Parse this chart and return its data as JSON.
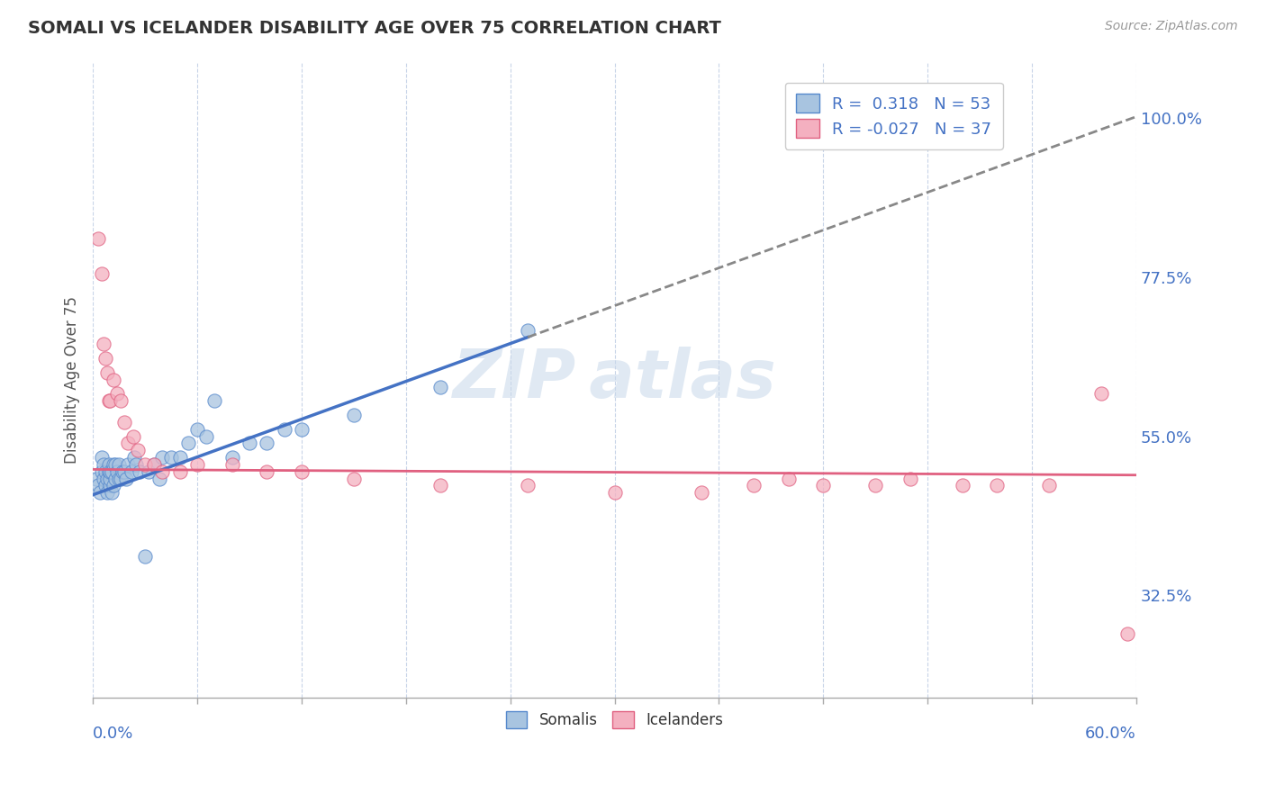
{
  "title": "SOMALI VS ICELANDER DISABILITY AGE OVER 75 CORRELATION CHART",
  "source": "Source: ZipAtlas.com",
  "ylabel": "Disability Age Over 75",
  "ylabel_right_ticks": [
    "32.5%",
    "55.0%",
    "77.5%",
    "100.0%"
  ],
  "ylabel_right_vals": [
    0.325,
    0.55,
    0.775,
    1.0
  ],
  "xmin": 0.0,
  "xmax": 0.6,
  "ymin": 0.18,
  "ymax": 1.08,
  "somali_R": 0.318,
  "somali_N": 53,
  "icelander_R": -0.027,
  "icelander_N": 37,
  "somali_color": "#a8c4e0",
  "somali_edge_color": "#5588cc",
  "somali_line_color": "#4472c4",
  "icelander_color": "#f4b0c0",
  "icelander_edge_color": "#e06080",
  "icelander_line_color": "#e06080",
  "background_color": "#ffffff",
  "grid_color": "#c8d4e8",
  "label_color": "#4472c4",
  "somali_x": [
    0.002,
    0.003,
    0.004,
    0.005,
    0.005,
    0.006,
    0.006,
    0.007,
    0.007,
    0.008,
    0.008,
    0.009,
    0.009,
    0.01,
    0.01,
    0.01,
    0.011,
    0.011,
    0.012,
    0.012,
    0.013,
    0.013,
    0.014,
    0.015,
    0.015,
    0.016,
    0.017,
    0.018,
    0.019,
    0.02,
    0.022,
    0.024,
    0.025,
    0.027,
    0.03,
    0.032,
    0.035,
    0.038,
    0.04,
    0.045,
    0.05,
    0.055,
    0.06,
    0.065,
    0.07,
    0.08,
    0.09,
    0.1,
    0.11,
    0.12,
    0.15,
    0.2,
    0.25
  ],
  "somali_y": [
    0.49,
    0.48,
    0.47,
    0.5,
    0.52,
    0.49,
    0.51,
    0.48,
    0.5,
    0.47,
    0.49,
    0.5,
    0.51,
    0.48,
    0.49,
    0.5,
    0.47,
    0.5,
    0.48,
    0.51,
    0.49,
    0.51,
    0.5,
    0.49,
    0.51,
    0.49,
    0.5,
    0.5,
    0.49,
    0.51,
    0.5,
    0.52,
    0.51,
    0.5,
    0.38,
    0.5,
    0.51,
    0.49,
    0.52,
    0.52,
    0.52,
    0.54,
    0.56,
    0.55,
    0.6,
    0.52,
    0.54,
    0.54,
    0.56,
    0.56,
    0.58,
    0.62,
    0.7
  ],
  "icelander_x": [
    0.003,
    0.005,
    0.006,
    0.007,
    0.008,
    0.009,
    0.01,
    0.012,
    0.014,
    0.016,
    0.018,
    0.02,
    0.023,
    0.026,
    0.03,
    0.035,
    0.04,
    0.05,
    0.06,
    0.08,
    0.1,
    0.12,
    0.15,
    0.2,
    0.25,
    0.3,
    0.35,
    0.38,
    0.4,
    0.42,
    0.45,
    0.47,
    0.5,
    0.52,
    0.55,
    0.58,
    0.595
  ],
  "icelander_y": [
    0.83,
    0.78,
    0.68,
    0.66,
    0.64,
    0.6,
    0.6,
    0.63,
    0.61,
    0.6,
    0.57,
    0.54,
    0.55,
    0.53,
    0.51,
    0.51,
    0.5,
    0.5,
    0.51,
    0.51,
    0.5,
    0.5,
    0.49,
    0.48,
    0.48,
    0.47,
    0.47,
    0.48,
    0.49,
    0.48,
    0.48,
    0.49,
    0.48,
    0.48,
    0.48,
    0.61,
    0.27
  ],
  "trend_somali_x0": 0.0,
  "trend_somali_y0": 0.467,
  "trend_somali_x1": 0.25,
  "trend_somali_y1": 0.69,
  "trend_solid_end": 0.25,
  "trend_dashed_end": 0.6,
  "trend_icelander_x0": 0.0,
  "trend_icelander_y0": 0.503,
  "trend_icelander_x1": 0.6,
  "trend_icelander_y1": 0.495
}
